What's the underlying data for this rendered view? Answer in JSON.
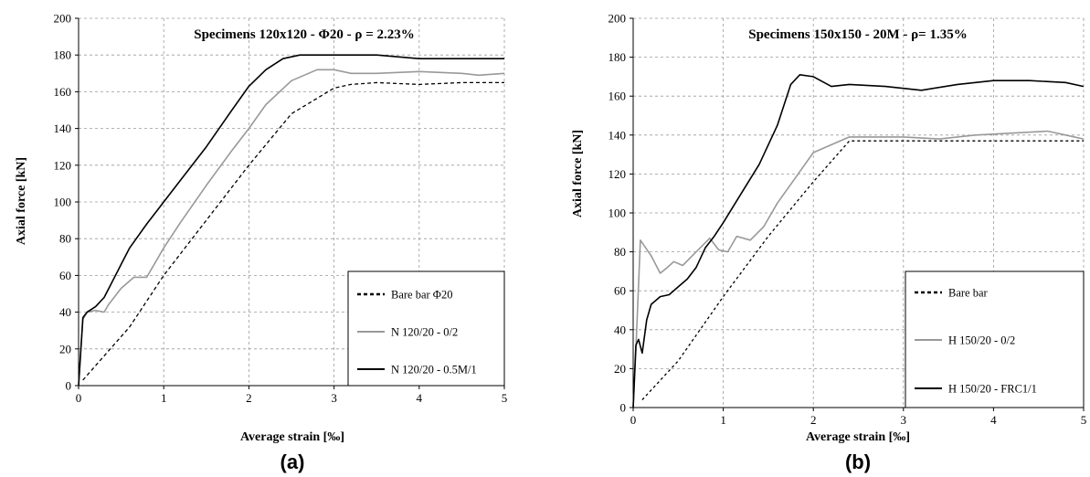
{
  "chart_data": [
    {
      "type": "line",
      "panel_label": "(a)",
      "title": "Specimens 120x120 - Φ20 - ρ = 2.23%",
      "xlabel": "Average strain [‰]",
      "ylabel": "Axial force [kN]",
      "xlim": [
        0,
        5
      ],
      "ylim": [
        0,
        200
      ],
      "xticks": [
        0,
        1,
        2,
        3,
        4,
        5
      ],
      "yticks": [
        0,
        20,
        40,
        60,
        80,
        100,
        120,
        140,
        160,
        180,
        200
      ],
      "grid": true,
      "legend_position": "bottom-right",
      "series": [
        {
          "name": "Bare bar Φ20",
          "color": "#000000",
          "style": "dotted",
          "x": [
            0.05,
            0.6,
            1.0,
            1.5,
            2.0,
            2.5,
            3.0,
            3.2,
            3.5,
            4.0,
            4.5,
            5.0
          ],
          "y": [
            3,
            32,
            60,
            90,
            120,
            148,
            162,
            164,
            165,
            164,
            165,
            165
          ]
        },
        {
          "name": "N 120/20 - 0/2",
          "color": "#999999",
          "style": "solid",
          "x": [
            0,
            0.05,
            0.1,
            0.2,
            0.3,
            0.35,
            0.5,
            0.65,
            0.8,
            1.0,
            1.2,
            1.5,
            1.8,
            2.0,
            2.2,
            2.5,
            2.7,
            2.8,
            3.0,
            3.2,
            3.5,
            4.0,
            4.5,
            4.7,
            5.0
          ],
          "y": [
            0,
            36,
            40,
            41,
            40,
            44,
            53,
            59,
            59,
            75,
            89,
            109,
            128,
            140,
            153,
            166,
            170,
            172,
            172,
            170,
            170,
            171,
            170,
            169,
            170
          ]
        },
        {
          "name": "N 120/20 - 0.5M/1",
          "color": "#000000",
          "style": "solid",
          "x": [
            0,
            0.05,
            0.1,
            0.2,
            0.3,
            0.5,
            0.6,
            0.8,
            1.0,
            1.2,
            1.5,
            1.8,
            2.0,
            2.2,
            2.4,
            2.6,
            2.8,
            3.0,
            3.3,
            3.5,
            4.0,
            4.5,
            5.0
          ],
          "y": [
            0,
            37,
            40,
            43,
            48,
            66,
            75,
            88,
            100,
            112,
            130,
            150,
            163,
            172,
            178,
            180,
            180,
            180,
            180,
            180,
            178,
            178,
            178
          ]
        }
      ]
    },
    {
      "type": "line",
      "panel_label": "(b)",
      "title": "Specimens 150x150 - 20M - ρ= 1.35%",
      "xlabel": "Average strain [‰]",
      "ylabel": "Axial force [kN]",
      "xlim": [
        0,
        5
      ],
      "ylim": [
        0,
        200
      ],
      "xticks": [
        0,
        1,
        2,
        3,
        4,
        5
      ],
      "yticks": [
        0,
        20,
        40,
        60,
        80,
        100,
        120,
        140,
        160,
        180,
        200
      ],
      "grid": true,
      "legend_position": "bottom-right",
      "series": [
        {
          "name": "Bare bar",
          "color": "#000000",
          "style": "dotted",
          "x": [
            0.1,
            0.5,
            1.0,
            1.5,
            2.0,
            2.4,
            2.5,
            3.0,
            3.5,
            4.0,
            4.5,
            5.0
          ],
          "y": [
            4,
            24,
            57,
            88,
            116,
            137,
            137,
            137,
            137,
            137,
            137,
            137
          ]
        },
        {
          "name": "H 150/20 - 0/2",
          "color": "#999999",
          "style": "solid",
          "x": [
            0,
            0.03,
            0.08,
            0.2,
            0.3,
            0.38,
            0.45,
            0.55,
            0.7,
            0.85,
            0.95,
            1.05,
            1.15,
            1.3,
            1.45,
            1.6,
            1.8,
            2.0,
            2.2,
            2.4,
            2.6,
            3.0,
            3.4,
            3.8,
            4.2,
            4.6,
            4.8,
            5.0
          ],
          "y": [
            0,
            30,
            86,
            78,
            69,
            72,
            75,
            73,
            80,
            87,
            81,
            80,
            88,
            86,
            93,
            105,
            118,
            131,
            135,
            139,
            139,
            139,
            138,
            140,
            141,
            142,
            140,
            138
          ]
        },
        {
          "name": "H 150/20 - FRC1/1",
          "color": "#000000",
          "style": "solid",
          "x": [
            0,
            0.03,
            0.06,
            0.1,
            0.15,
            0.2,
            0.3,
            0.4,
            0.5,
            0.6,
            0.7,
            0.8,
            0.9,
            1.0,
            1.2,
            1.4,
            1.6,
            1.75,
            1.85,
            2.0,
            2.2,
            2.4,
            2.8,
            3.2,
            3.6,
            4.0,
            4.4,
            4.8,
            5.0
          ],
          "y": [
            0,
            32,
            35,
            28,
            45,
            53,
            57,
            58,
            62,
            66,
            72,
            82,
            88,
            95,
            110,
            125,
            145,
            166,
            171,
            170,
            165,
            166,
            165,
            163,
            166,
            168,
            168,
            167,
            165
          ]
        }
      ]
    }
  ]
}
